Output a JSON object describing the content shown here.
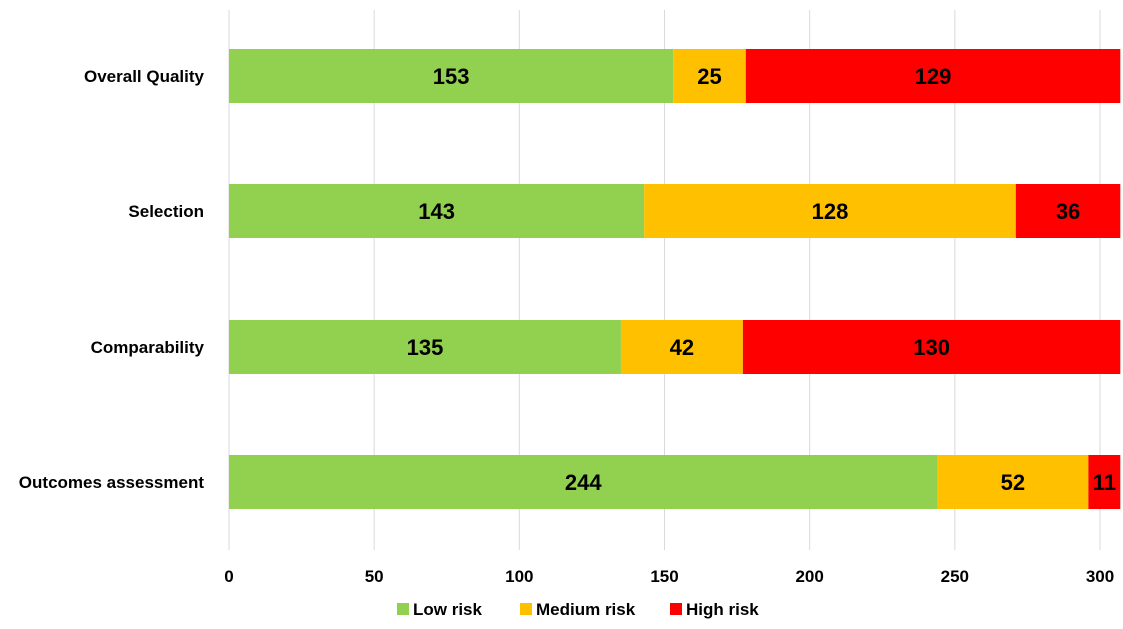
{
  "chart_data": {
    "type": "bar",
    "orientation": "horizontal",
    "stacked": true,
    "categories": [
      "Overall Quality",
      "Selection",
      "Comparability",
      "Outcomes assessment"
    ],
    "series": [
      {
        "name": "Low risk",
        "color": "#92D050",
        "values": [
          153,
          143,
          135,
          244
        ]
      },
      {
        "name": "Medium risk",
        "color": "#FFC000",
        "values": [
          25,
          128,
          42,
          52
        ]
      },
      {
        "name": "High risk",
        "color": "#FF0000",
        "values": [
          129,
          36,
          130,
          11
        ]
      }
    ],
    "xlim": [
      0,
      300
    ],
    "xticks": [
      0,
      50,
      100,
      150,
      200,
      250,
      300
    ],
    "grid": true,
    "legend_position": "bottom",
    "title": "",
    "xlabel": "",
    "ylabel": ""
  }
}
